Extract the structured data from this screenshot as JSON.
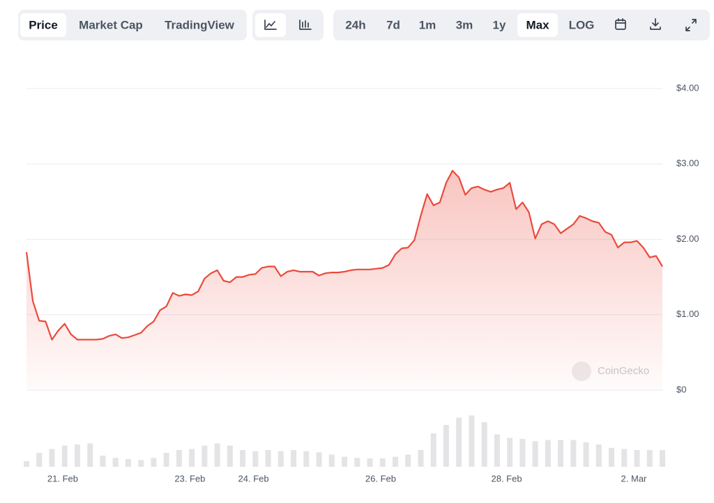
{
  "toolbar": {
    "tabs": [
      "Price",
      "Market Cap",
      "TradingView"
    ],
    "selected_tab": 0,
    "ranges": [
      "24h",
      "7d",
      "1m",
      "3m",
      "1y",
      "Max",
      "LOG"
    ],
    "selected_range": 5
  },
  "chart_data": {
    "type": "line",
    "color": "#ea4a3d",
    "values": [
      1.83,
      1.18,
      0.92,
      0.91,
      0.67,
      0.79,
      0.88,
      0.74,
      0.67,
      0.67,
      0.67,
      0.67,
      0.68,
      0.72,
      0.74,
      0.69,
      0.7,
      0.73,
      0.76,
      0.85,
      0.91,
      1.06,
      1.11,
      1.29,
      1.25,
      1.27,
      1.26,
      1.31,
      1.48,
      1.55,
      1.59,
      1.45,
      1.43,
      1.5,
      1.5,
      1.53,
      1.54,
      1.62,
      1.64,
      1.64,
      1.51,
      1.57,
      1.59,
      1.57,
      1.57,
      1.57,
      1.52,
      1.55,
      1.56,
      1.56,
      1.57,
      1.59,
      1.6,
      1.6,
      1.6,
      1.61,
      1.62,
      1.66,
      1.8,
      1.88,
      1.89,
      1.99,
      2.31,
      2.6,
      2.45,
      2.49,
      2.75,
      2.91,
      2.82,
      2.59,
      2.68,
      2.7,
      2.66,
      2.63,
      2.66,
      2.68,
      2.75,
      2.4,
      2.49,
      2.36,
      2.01,
      2.2,
      2.24,
      2.2,
      2.08,
      2.14,
      2.2,
      2.31,
      2.28,
      2.24,
      2.22,
      2.1,
      2.06,
      1.89,
      1.96,
      1.96,
      1.98,
      1.89,
      1.76,
      1.78,
      1.64
    ],
    "xlim": [
      0,
      100
    ],
    "xticks": [
      {
        "value": 5.7,
        "label": "21. Feb"
      },
      {
        "value": 25.7,
        "label": "23. Feb"
      },
      {
        "value": 35.7,
        "label": "24. Feb"
      },
      {
        "value": 55.7,
        "label": "26. Feb"
      },
      {
        "value": 75.5,
        "label": "28. Feb"
      },
      {
        "value": 95.5,
        "label": "2. Mar"
      }
    ],
    "ylim": [
      0,
      4
    ],
    "yticks": [
      {
        "value": 4,
        "label": "$4.00"
      },
      {
        "value": 3,
        "label": "$3.00"
      },
      {
        "value": 2,
        "label": "$2.00"
      },
      {
        "value": 1,
        "label": "$1.00"
      },
      {
        "value": 0,
        "label": "$0"
      }
    ],
    "grid": true,
    "volume": {
      "color": "#e4e4e7",
      "ylim": [
        0,
        100
      ],
      "xlim": [
        0,
        50
      ],
      "values": [
        10,
        25,
        32,
        38,
        40,
        42,
        20,
        16,
        14,
        12,
        16,
        25,
        30,
        32,
        38,
        42,
        38,
        30,
        28,
        30,
        28,
        30,
        28,
        26,
        22,
        18,
        16,
        15,
        15,
        18,
        22,
        30,
        60,
        75,
        88,
        92,
        80,
        58,
        52,
        50,
        46,
        48,
        48,
        48,
        44,
        40,
        34,
        32,
        30,
        30,
        30
      ]
    },
    "watermark": "CoinGecko"
  }
}
